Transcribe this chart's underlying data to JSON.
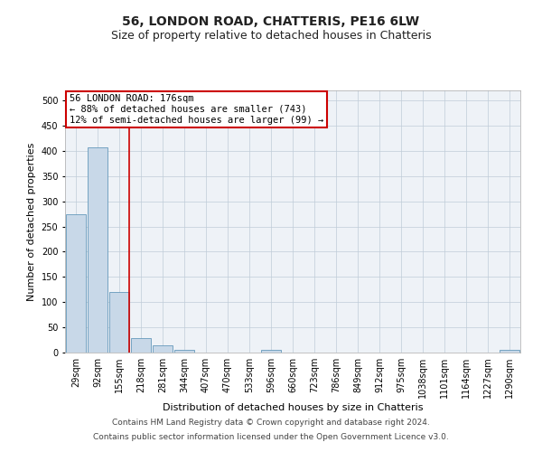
{
  "title": "56, LONDON ROAD, CHATTERIS, PE16 6LW",
  "subtitle": "Size of property relative to detached houses in Chatteris",
  "xlabel": "Distribution of detached houses by size in Chatteris",
  "ylabel": "Number of detached properties",
  "bin_labels": [
    "29sqm",
    "92sqm",
    "155sqm",
    "218sqm",
    "281sqm",
    "344sqm",
    "407sqm",
    "470sqm",
    "533sqm",
    "596sqm",
    "660sqm",
    "723sqm",
    "786sqm",
    "849sqm",
    "912sqm",
    "975sqm",
    "1038sqm",
    "1101sqm",
    "1164sqm",
    "1227sqm",
    "1290sqm"
  ],
  "bar_heights": [
    275,
    407,
    120,
    28,
    14,
    5,
    0,
    0,
    0,
    5,
    0,
    0,
    0,
    0,
    0,
    0,
    0,
    0,
    0,
    0,
    5
  ],
  "bar_color": "#c8d8e8",
  "bar_edge_color": "#6699bb",
  "vline_x_idx": 2,
  "vline_color": "#cc0000",
  "annotation_text": "56 LONDON ROAD: 176sqm\n← 88% of detached houses are smaller (743)\n12% of semi-detached houses are larger (99) →",
  "annotation_box_color": "#ffffff",
  "annotation_box_edge": "#cc0000",
  "footer_line1": "Contains HM Land Registry data © Crown copyright and database right 2024.",
  "footer_line2": "Contains public sector information licensed under the Open Government Licence v3.0.",
  "ylim": [
    0,
    520
  ],
  "yticks": [
    0,
    50,
    100,
    150,
    200,
    250,
    300,
    350,
    400,
    450,
    500
  ],
  "plot_bg_color": "#eef2f7",
  "title_fontsize": 10,
  "subtitle_fontsize": 9,
  "axis_label_fontsize": 8,
  "tick_fontsize": 7,
  "footer_fontsize": 6.5,
  "annotation_fontsize": 7.5
}
